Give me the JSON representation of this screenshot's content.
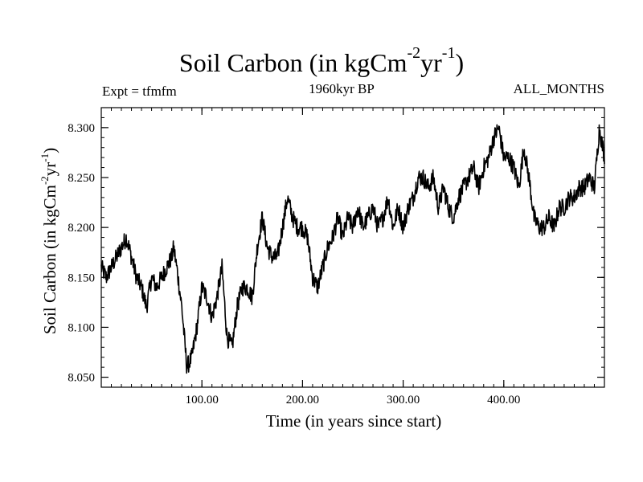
{
  "chart_data": {
    "type": "line",
    "title": "Soil Carbon (in kgCm",
    "title_sup1": "-2",
    "title_mid": "yr",
    "title_sup2": "-1",
    "title_end": ")",
    "left_label": "Expt = tfmfm",
    "subtitle": "1960kyr BP",
    "right_label": "ALL_MONTHS",
    "xlabel": "Time (in years since start)",
    "ylabel": "Soil Carbon (in kgCm",
    "ylabel_sup1": "-2",
    "ylabel_mid": "yr",
    "ylabel_sup2": "-1",
    "ylabel_end": ")",
    "xlim": [
      0,
      500
    ],
    "ylim": [
      8.04,
      8.32
    ],
    "xticks": [
      100,
      200,
      300,
      400
    ],
    "xtick_labels": [
      "100.00",
      "200.00",
      "300.00",
      "400.00"
    ],
    "yticks": [
      8.05,
      8.1,
      8.15,
      8.2,
      8.25,
      8.3
    ],
    "ytick_labels": [
      "8.050",
      "8.100",
      "8.150",
      "8.200",
      "8.250",
      "8.300"
    ],
    "series": [
      {
        "name": "Soil Carbon",
        "color": "#000000",
        "x": [
          0,
          5,
          10,
          15,
          20,
          25,
          30,
          35,
          40,
          45,
          50,
          55,
          60,
          65,
          70,
          72,
          75,
          80,
          85,
          90,
          95,
          100,
          105,
          110,
          115,
          120,
          125,
          130,
          135,
          140,
          145,
          150,
          155,
          160,
          165,
          170,
          175,
          180,
          185,
          190,
          195,
          200,
          205,
          210,
          215,
          220,
          225,
          230,
          235,
          240,
          245,
          250,
          255,
          260,
          265,
          270,
          275,
          280,
          285,
          290,
          295,
          300,
          305,
          310,
          315,
          320,
          325,
          330,
          335,
          340,
          345,
          350,
          355,
          360,
          365,
          370,
          375,
          380,
          385,
          390,
          395,
          400,
          405,
          410,
          415,
          420,
          425,
          430,
          435,
          440,
          445,
          450,
          455,
          460,
          465,
          470,
          475,
          480,
          485,
          490,
          495,
          500
        ],
        "values": [
          8.16,
          8.15,
          8.16,
          8.17,
          8.18,
          8.19,
          8.17,
          8.15,
          8.14,
          8.12,
          8.15,
          8.14,
          8.15,
          8.16,
          8.17,
          8.18,
          8.16,
          8.12,
          8.06,
          8.07,
          8.1,
          8.14,
          8.13,
          8.11,
          8.13,
          8.16,
          8.09,
          8.08,
          8.12,
          8.14,
          8.14,
          8.13,
          8.18,
          8.21,
          8.18,
          8.17,
          8.17,
          8.2,
          8.23,
          8.21,
          8.2,
          8.2,
          8.19,
          8.15,
          8.14,
          8.16,
          8.18,
          8.19,
          8.21,
          8.19,
          8.21,
          8.2,
          8.22,
          8.2,
          8.21,
          8.22,
          8.2,
          8.21,
          8.23,
          8.2,
          8.22,
          8.2,
          8.22,
          8.23,
          8.25,
          8.25,
          8.24,
          8.25,
          8.22,
          8.24,
          8.22,
          8.21,
          8.23,
          8.24,
          8.25,
          8.26,
          8.24,
          8.26,
          8.27,
          8.29,
          8.3,
          8.27,
          8.27,
          8.26,
          8.24,
          8.28,
          8.25,
          8.21,
          8.2,
          8.2,
          8.21,
          8.2,
          8.22,
          8.22,
          8.23,
          8.23,
          8.24,
          8.24,
          8.25,
          8.24,
          8.3,
          8.27
        ]
      }
    ]
  }
}
